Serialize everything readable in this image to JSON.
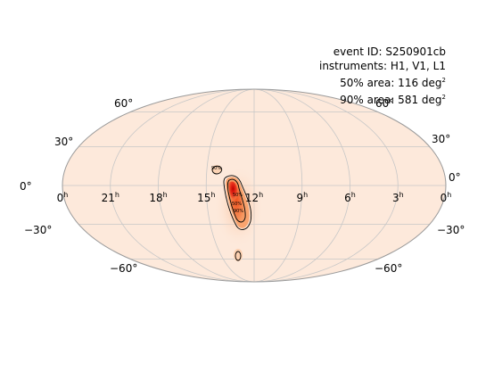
{
  "map": {
    "projection": "mollweide",
    "background_color": "#fde9db",
    "grid_color": "#c7c7c7",
    "outline_color": "#9a9a9a",
    "contour_color": "#000000",
    "lat_lines": [
      -60,
      -30,
      0,
      30,
      60
    ],
    "lon_lines_hours": [
      0,
      3,
      6,
      9,
      12,
      15,
      18,
      21,
      24
    ]
  },
  "info": {
    "event_id": "event ID: S250901cb",
    "instruments": "instruments: H1, V1, L1",
    "area50_prefix": "50% area: 116 deg",
    "area90_prefix": "90% area: 581 deg",
    "area_exponent": "2"
  },
  "lat_labels": {
    "n60": "60°",
    "n30": "30°",
    "eq": "0°",
    "s30": "−30°",
    "s60": "−60°"
  },
  "ra_labels": [
    {
      "hour": 24,
      "num": "0",
      "unit": "h"
    },
    {
      "hour": 21,
      "num": "21",
      "unit": "h"
    },
    {
      "hour": 18,
      "num": "18",
      "unit": "h"
    },
    {
      "hour": 15,
      "num": "15",
      "unit": "h"
    },
    {
      "hour": 12,
      "num": "12",
      "unit": "h"
    },
    {
      "hour": 9,
      "num": "9",
      "unit": "h"
    },
    {
      "hour": 6,
      "num": "6",
      "unit": "h"
    },
    {
      "hour": 3,
      "num": "3",
      "unit": "h"
    },
    {
      "hour": 0,
      "num": "0",
      "unit": "h"
    }
  ],
  "contour_labels": [
    "90%",
    "50%",
    "50%",
    "90%"
  ]
}
